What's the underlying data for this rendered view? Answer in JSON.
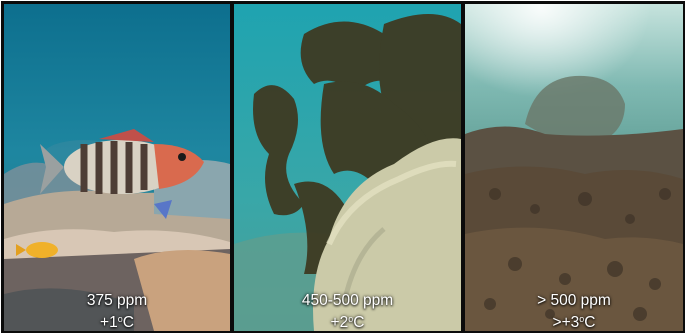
{
  "panels": [
    {
      "ppm_label": "375 ppm",
      "temp_prefix": "+1",
      "temp_sup": "o",
      "temp_suffix": "C"
    },
    {
      "ppm_label": "450-500 ppm",
      "temp_prefix": "+2",
      "temp_sup": "o",
      "temp_suffix": "C"
    },
    {
      "ppm_label": "> 500 ppm",
      "temp_prefix": ">+3",
      "temp_sup": "o",
      "temp_suffix": "C"
    }
  ],
  "colors": {
    "healthy_water": "#1f7f98",
    "stressed_water": "#2ca3a6",
    "degraded_water": "#6fa79e",
    "divider": "#0b0b0b"
  }
}
